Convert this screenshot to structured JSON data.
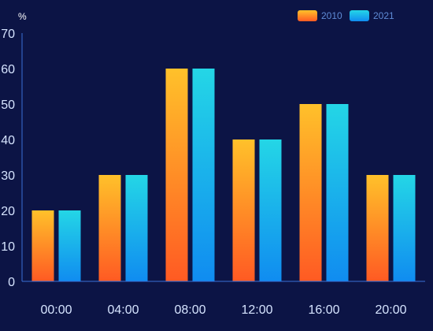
{
  "chart_data": {
    "type": "bar",
    "y_unit": "%",
    "categories": [
      "00:00",
      "04:00",
      "08:00",
      "12:00",
      "16:00",
      "20:00"
    ],
    "series": [
      {
        "name": "2010",
        "values": [
          20,
          30,
          60,
          40,
          50,
          30
        ],
        "color_top": "#ffc12a",
        "color_bottom": "#ff5a23"
      },
      {
        "name": "2021",
        "values": [
          20,
          30,
          60,
          40,
          50,
          30
        ],
        "color_top": "#24d6e6",
        "color_bottom": "#108cf0"
      }
    ],
    "ylim": [
      0,
      70
    ],
    "y_ticks": [
      0,
      10,
      20,
      30,
      40,
      50,
      60,
      70
    ],
    "grid": false,
    "legend_position": "top-right"
  },
  "colors": {
    "background": "#0c1445",
    "axis": "#3a6fd8",
    "tick_text": "#d6e4ff",
    "legend_text": "#5f8bd6"
  }
}
